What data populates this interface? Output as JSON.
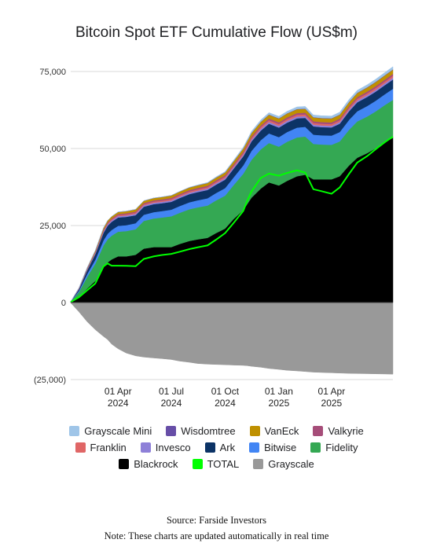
{
  "chart_data": {
    "type": "area",
    "title": "Bitcoin Spot ETF Cumulative Flow (US$m)",
    "xlabel": "",
    "ylabel": "",
    "ylim": [
      -25000,
      75000
    ],
    "yticks": [
      {
        "value": 75000,
        "label": "75,000"
      },
      {
        "value": 50000,
        "label": "50,000"
      },
      {
        "value": 25000,
        "label": "25,000"
      },
      {
        "value": 0,
        "label": "0"
      },
      {
        "value": -25000,
        "label": "(25,000)"
      }
    ],
    "xticks": [
      {
        "date": "2024-04-01",
        "line1": "01 Apr",
        "line2": "2024"
      },
      {
        "date": "2024-07-01",
        "line1": "01 Jul",
        "line2": "2024"
      },
      {
        "date": "2024-10-01",
        "line1": "01 Oct",
        "line2": "2024"
      },
      {
        "date": "2025-01-01",
        "line1": "01 Jan",
        "line2": "2025"
      },
      {
        "date": "2025-04-01",
        "line1": "01 Apr",
        "line2": "2025"
      }
    ],
    "xlim": [
      "2024-01-11",
      "2025-07-15"
    ],
    "grid": "horizontal",
    "legend_position": "bottom",
    "x": [
      "2024-01-11",
      "2024-01-25",
      "2024-02-08",
      "2024-02-22",
      "2024-03-07",
      "2024-03-14",
      "2024-03-21",
      "2024-04-01",
      "2024-04-15",
      "2024-05-01",
      "2024-05-15",
      "2024-06-01",
      "2024-06-15",
      "2024-07-01",
      "2024-07-15",
      "2024-08-01",
      "2024-08-15",
      "2024-09-01",
      "2024-09-15",
      "2024-10-01",
      "2024-10-15",
      "2024-11-01",
      "2024-11-08",
      "2024-11-15",
      "2024-12-01",
      "2024-12-15",
      "2025-01-01",
      "2025-01-15",
      "2025-02-01",
      "2025-02-15",
      "2025-03-01",
      "2025-03-15",
      "2025-04-01",
      "2025-04-15",
      "2025-05-01",
      "2025-05-15",
      "2025-06-01",
      "2025-06-15",
      "2025-07-01",
      "2025-07-15"
    ],
    "series": [
      {
        "name": "Blackrock",
        "color": "#000000",
        "values": [
          200,
          1800,
          4500,
          7000,
          11500,
          13000,
          14000,
          15000,
          15000,
          15500,
          17500,
          18000,
          18000,
          18000,
          19000,
          20000,
          20500,
          21000,
          22500,
          24000,
          27000,
          30000,
          32000,
          34000,
          37000,
          39000,
          38000,
          39500,
          41000,
          41500,
          40000,
          40000,
          40000,
          41000,
          44500,
          47000,
          48500,
          50000,
          52000,
          53500
        ]
      },
      {
        "name": "Fidelity",
        "color": "#34a853",
        "values": [
          50,
          1600,
          3800,
          5600,
          7000,
          7500,
          7700,
          8000,
          8200,
          8300,
          9000,
          9300,
          9600,
          10000,
          10100,
          10300,
          10400,
          10500,
          10600,
          10700,
          11000,
          11800,
          12000,
          12300,
          12700,
          12800,
          12600,
          12700,
          12600,
          12400,
          11500,
          11300,
          11200,
          11300,
          11600,
          11800,
          11900,
          12000,
          12100,
          12300
        ]
      },
      {
        "name": "Bitwise",
        "color": "#4285f4",
        "values": [
          10,
          400,
          900,
          1300,
          1700,
          1800,
          1850,
          1900,
          1920,
          1950,
          2000,
          2050,
          2100,
          2150,
          2200,
          2250,
          2300,
          2350,
          2400,
          2450,
          2500,
          2700,
          2800,
          2900,
          3000,
          3100,
          3100,
          3150,
          3200,
          3150,
          3000,
          3000,
          3000,
          3050,
          3200,
          3300,
          3400,
          3450,
          3500,
          3600
        ]
      },
      {
        "name": "Ark",
        "color": "#0c3366",
        "values": [
          10,
          500,
          1200,
          1800,
          2400,
          2600,
          2650,
          2700,
          2700,
          2600,
          2600,
          2600,
          2550,
          2550,
          2600,
          2650,
          2650,
          2700,
          2700,
          2750,
          2800,
          2950,
          3000,
          3050,
          3100,
          3150,
          3100,
          3050,
          3000,
          2900,
          2700,
          2650,
          2650,
          2700,
          2800,
          2900,
          2950,
          2950,
          2950,
          3000
        ]
      },
      {
        "name": "Invesco",
        "color": "#8e80d8",
        "values": [
          5,
          150,
          280,
          350,
          420,
          440,
          450,
          460,
          460,
          460,
          460,
          460,
          460,
          460,
          470,
          480,
          480,
          490,
          500,
          500,
          500,
          520,
          540,
          560,
          580,
          600,
          600,
          600,
          600,
          590,
          570,
          560,
          560,
          560,
          570,
          580,
          590,
          600,
          600,
          610
        ]
      },
      {
        "name": "Franklin",
        "color": "#e06666",
        "values": [
          5,
          60,
          120,
          180,
          250,
          280,
          290,
          300,
          320,
          330,
          340,
          350,
          360,
          370,
          380,
          390,
          400,
          410,
          420,
          430,
          440,
          470,
          490,
          510,
          530,
          540,
          540,
          540,
          540,
          540,
          530,
          530,
          530,
          540,
          550,
          560,
          570,
          580,
          590,
          600
        ]
      },
      {
        "name": "Valkyrie",
        "color": "#a64d79",
        "values": [
          5,
          100,
          180,
          250,
          320,
          350,
          360,
          370,
          380,
          390,
          400,
          410,
          420,
          430,
          440,
          450,
          460,
          470,
          480,
          490,
          500,
          520,
          530,
          540,
          560,
          570,
          570,
          570,
          570,
          570,
          560,
          560,
          560,
          560,
          570,
          580,
          590,
          600,
          610,
          620
        ]
      },
      {
        "name": "VanEck",
        "color": "#bf9000",
        "values": [
          5,
          100,
          250,
          400,
          600,
          620,
          630,
          650,
          670,
          700,
          720,
          740,
          760,
          780,
          800,
          820,
          840,
          860,
          880,
          900,
          950,
          1000,
          1050,
          1100,
          1150,
          1200,
          1220,
          1230,
          1240,
          1240,
          1230,
          1230,
          1230,
          1240,
          1260,
          1280,
          1300,
          1320,
          1340,
          1360
        ]
      },
      {
        "name": "Wisdomtree",
        "color": "#674ea7",
        "values": [
          2,
          10,
          15,
          20,
          25,
          28,
          30,
          32,
          35,
          38,
          40,
          42,
          45,
          48,
          50,
          52,
          55,
          58,
          60,
          62,
          65,
          70,
          75,
          80,
          85,
          90,
          92,
          94,
          96,
          98,
          100,
          100,
          100,
          102,
          105,
          108,
          110,
          112,
          114,
          116
        ]
      },
      {
        "name": "Grayscale Mini",
        "color": "#9fc5e8",
        "values": [
          0,
          0,
          0,
          0,
          0,
          0,
          0,
          0,
          0,
          0,
          0,
          0,
          0,
          0,
          0,
          50,
          100,
          150,
          200,
          250,
          300,
          400,
          450,
          500,
          560,
          600,
          620,
          640,
          660,
          680,
          700,
          710,
          720,
          740,
          760,
          780,
          800,
          820,
          840,
          860
        ]
      },
      {
        "name": "Grayscale",
        "color": "#999999",
        "values": [
          -100,
          -3000,
          -6200,
          -8800,
          -11000,
          -12000,
          -13500,
          -15000,
          -16400,
          -17300,
          -17700,
          -18000,
          -18200,
          -18500,
          -19000,
          -19400,
          -19800,
          -20000,
          -20100,
          -20200,
          -20300,
          -20400,
          -20500,
          -20700,
          -21000,
          -21400,
          -21700,
          -22000,
          -22200,
          -22400,
          -22600,
          -22700,
          -22800,
          -22900,
          -23000,
          -23050,
          -23100,
          -23150,
          -23200,
          -23250
        ]
      },
      {
        "name": "TOTAL",
        "color": "#00ff00",
        "values": [
          192,
          1720,
          3945,
          6180,
          11715,
          12703,
          11955,
          11942,
          11925,
          11791,
          14162,
          14981,
          15435,
          15780,
          16470,
          17342,
          17925,
          18555,
          20340,
          22542,
          25700,
          29710,
          33115,
          36000,
          40445,
          41860,
          41170,
          42065,
          42922,
          42158,
          36780,
          36140,
          35310,
          37370,
          41770,
          45440,
          47545,
          49682,
          52014,
          53861
        ]
      }
    ]
  },
  "legend": {
    "rows": [
      [
        {
          "label": "Grayscale Mini",
          "color": "#9fc5e8"
        },
        {
          "label": "Wisdomtree",
          "color": "#674ea7"
        },
        {
          "label": "VanEck",
          "color": "#bf9000"
        },
        {
          "label": "Valkyrie",
          "color": "#a64d79"
        }
      ],
      [
        {
          "label": "Franklin",
          "color": "#e06666"
        },
        {
          "label": "Invesco",
          "color": "#8e80d8"
        },
        {
          "label": "Ark",
          "color": "#0c3366"
        },
        {
          "label": "Bitwise",
          "color": "#4285f4"
        },
        {
          "label": "Fidelity",
          "color": "#34a853"
        }
      ],
      [
        {
          "label": "Blackrock",
          "color": "#000000"
        },
        {
          "label": "TOTAL",
          "color": "#00ff00"
        },
        {
          "label": "Grayscale",
          "color": "#999999"
        }
      ]
    ]
  },
  "source": "Source: Farside Investors",
  "note": "Note: These charts are updated automatically in real time"
}
